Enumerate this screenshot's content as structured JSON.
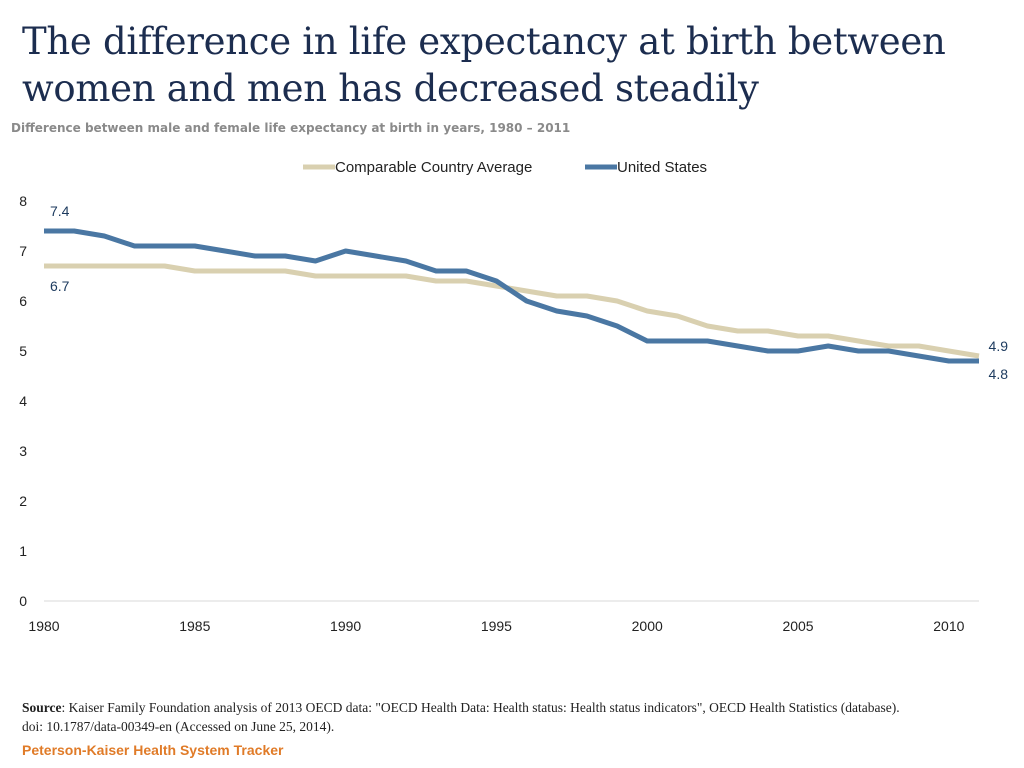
{
  "page": {
    "title_line1": "The difference in life expectancy at birth between",
    "title_line2": "women and men has decreased steadily",
    "subtitle": "Difference between male and female life expectancy at birth in years, 1980 – 2011",
    "source_label": "Source",
    "source_text": ": Kaiser Family Foundation analysis of 2013 OECD data: \"OECD Health Data: Health status: Health status indicators\", OECD Health Statistics (database). doi: 10.1787/data-00349-en (Accessed on June 25, 2014).",
    "brand": "Peterson-Kaiser Health System Tracker"
  },
  "chart_data": {
    "type": "line",
    "title": "",
    "xlabel": "",
    "ylabel": "",
    "x": [
      1980,
      1981,
      1982,
      1983,
      1984,
      1985,
      1986,
      1987,
      1988,
      1989,
      1990,
      1991,
      1992,
      1993,
      1994,
      1995,
      1996,
      1997,
      1998,
      1999,
      2000,
      2001,
      2002,
      2003,
      2004,
      2005,
      2006,
      2007,
      2008,
      2009,
      2010,
      2011
    ],
    "xlim": [
      1980,
      2011
    ],
    "ylim": [
      0,
      8
    ],
    "x_ticks": [
      1980,
      1985,
      1990,
      1995,
      2000,
      2005,
      2010
    ],
    "y_ticks": [
      0,
      1,
      2,
      3,
      4,
      5,
      6,
      7,
      8
    ],
    "legend_position": "top-center",
    "series": [
      {
        "name": "Comparable Country Average",
        "color": "#d9d0b0",
        "values": [
          6.7,
          6.7,
          6.7,
          6.7,
          6.7,
          6.6,
          6.6,
          6.6,
          6.6,
          6.5,
          6.5,
          6.5,
          6.5,
          6.4,
          6.4,
          6.3,
          6.2,
          6.1,
          6.1,
          6.0,
          5.8,
          5.7,
          5.5,
          5.4,
          5.4,
          5.3,
          5.3,
          5.2,
          5.1,
          5.1,
          5.0,
          4.9
        ],
        "start_label": "6.7",
        "end_label": "4.9"
      },
      {
        "name": "United States",
        "color": "#4a77a3",
        "values": [
          7.4,
          7.4,
          7.3,
          7.1,
          7.1,
          7.1,
          7.0,
          6.9,
          6.9,
          6.8,
          7.0,
          6.9,
          6.8,
          6.6,
          6.6,
          6.4,
          6.0,
          5.8,
          5.7,
          5.5,
          5.2,
          5.2,
          5.2,
          5.1,
          5.0,
          5.0,
          5.1,
          5.0,
          5.0,
          4.9,
          4.8,
          4.8
        ],
        "start_label": "7.4",
        "end_label": "4.8"
      }
    ],
    "label_color": "#1c3a5e"
  }
}
